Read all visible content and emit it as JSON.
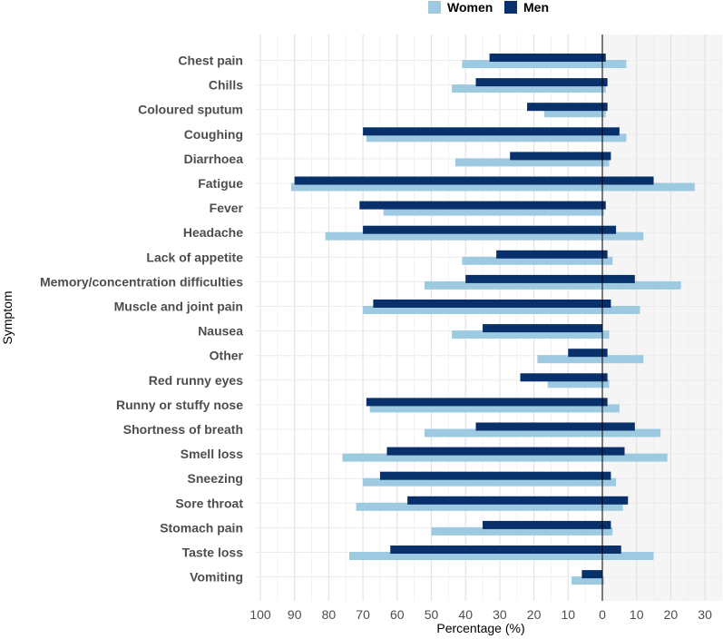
{
  "chart_data": {
    "type": "bar",
    "orientation": "horizontal",
    "xlabel": "Percentage (%)",
    "ylabel": "Symptom",
    "xlim": [
      -100,
      35
    ],
    "x_ticks": [
      -100,
      -90,
      -80,
      -70,
      -60,
      -50,
      -40,
      -30,
      -20,
      -10,
      0,
      10,
      20,
      30
    ],
    "x_tick_labels": [
      "100",
      "90",
      "80",
      "70",
      "60",
      "50",
      "40",
      "30",
      "20",
      "10",
      "0",
      "10",
      "20",
      "30"
    ],
    "grid": true,
    "legend_position": "top",
    "categories": [
      "Chest pain",
      "Chills",
      "Coloured sputum",
      "Coughing",
      "Diarrhoea",
      "Fatigue",
      "Fever",
      "Headache",
      "Lack of appetite",
      "Memory/concentration difficulties",
      "Muscle and joint pain",
      "Nausea",
      "Other",
      "Red runny eyes",
      "Runny or stuffy nose",
      "Shortness of breath",
      "Smell loss",
      "Sneezing",
      "Sore throat",
      "Stomach pain",
      "Taste loss",
      "Vomiting"
    ],
    "series": [
      {
        "name": "Women",
        "color": "#9ecae1",
        "negative_values": [
          -41,
          -44,
          -17,
          -69,
          -43,
          -91,
          -64,
          -81,
          -41,
          -52,
          -70,
          -44,
          -19,
          -16,
          -68,
          -52,
          -76,
          -70,
          -72,
          -50,
          -74,
          -9
        ],
        "positive_values": [
          7,
          1,
          1,
          7,
          2,
          27,
          0.5,
          12,
          3,
          23,
          11,
          2,
          12,
          2,
          5,
          17,
          19,
          4,
          6,
          3,
          15,
          0.5
        ]
      },
      {
        "name": "Men",
        "color": "#08306b",
        "negative_values": [
          -33,
          -37,
          -22,
          -70,
          -27,
          -90,
          -71,
          -70,
          -31,
          -40,
          -67,
          -35,
          -10,
          -24,
          -69,
          -37,
          -63,
          -65,
          -57,
          -35,
          -62,
          -6
        ],
        "positive_values": [
          1,
          1.5,
          1.5,
          5,
          2.5,
          15,
          1,
          4,
          1.5,
          9.5,
          2.5,
          0,
          1.5,
          1.5,
          1.5,
          9.5,
          6.5,
          2.5,
          7.5,
          2.5,
          5.5,
          0
        ]
      }
    ]
  }
}
